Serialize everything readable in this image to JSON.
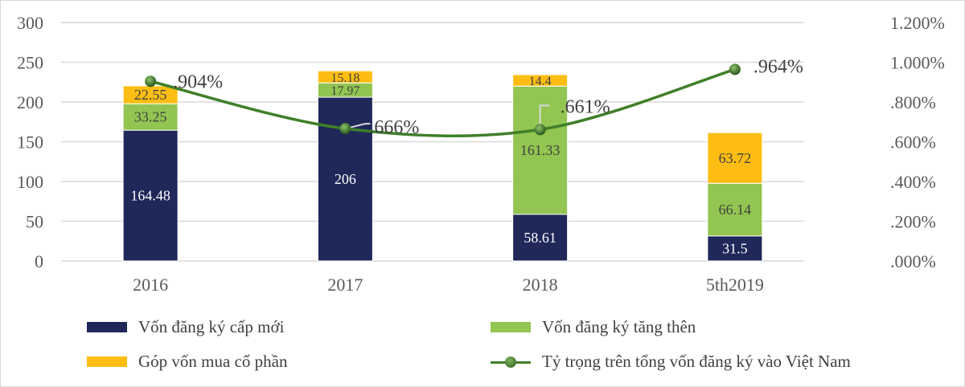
{
  "chart_data": {
    "type": "bar+line",
    "categories": [
      "2016",
      "2017",
      "2018",
      "5th2019"
    ],
    "series": [
      {
        "name": "Vốn đăng ký cấp mới",
        "type": "stacked-bar",
        "axis": "left",
        "color": "#1f2859",
        "values": [
          164.48,
          206,
          58.61,
          31.5
        ],
        "labels": [
          "164.48",
          "206",
          "58.61",
          "31.5"
        ]
      },
      {
        "name": "Vốn đăng ký tăng thên",
        "type": "stacked-bar",
        "axis": "left",
        "color": "#92c551",
        "values": [
          33.25,
          17.97,
          161.33,
          66.14
        ],
        "labels": [
          "33.25",
          "17.97",
          "161.33",
          "66.14"
        ]
      },
      {
        "name": "Góp vốn mua cổ phần",
        "type": "stacked-bar",
        "axis": "left",
        "color": "#fdbd12",
        "values": [
          22.55,
          15.18,
          14.4,
          63.72
        ],
        "labels": [
          "22.55",
          "15.18",
          "14.4",
          "63.72"
        ]
      },
      {
        "name": "Tỷ trọng trên tổng vốn đăng ký vào Việt Nam",
        "type": "line",
        "axis": "right",
        "color": "#3f7f2a",
        "values": [
          0.904,
          0.666,
          0.661,
          0.964
        ],
        "labels": [
          ".904%",
          ".666%",
          ".661%",
          ".964%"
        ]
      }
    ],
    "left_axis": {
      "ylim": [
        0,
        300
      ],
      "ticks": [
        "0",
        "50",
        "100",
        "150",
        "200",
        "250",
        "300"
      ]
    },
    "right_axis": {
      "ylim": [
        0,
        1.2
      ],
      "ticks": [
        ".000%",
        ".200%",
        ".400%",
        ".600%",
        ".800%",
        "1.000%",
        "1.200%"
      ]
    },
    "grid": true,
    "legend": "bottom"
  }
}
